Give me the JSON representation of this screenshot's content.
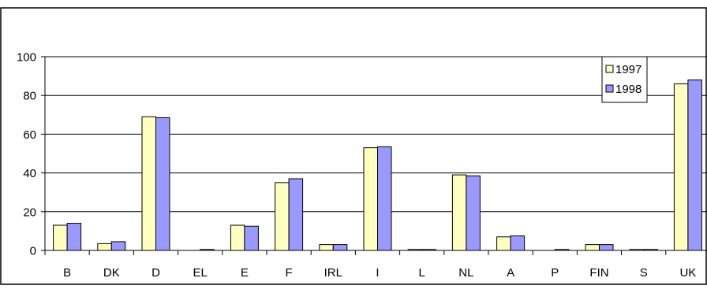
{
  "colors": {
    "series_1997": "#ffffc0",
    "series_1998": "#9999ff",
    "bar_stroke": "#000000",
    "grid": "#000000",
    "background": "#ffffff"
  },
  "chart_data": {
    "type": "bar",
    "categories": [
      "B",
      "DK",
      "D",
      "EL",
      "E",
      "F",
      "IRL",
      "I",
      "L",
      "NL",
      "A",
      "P",
      "FIN",
      "S",
      "UK"
    ],
    "series": [
      {
        "name": "1997",
        "values": [
          13,
          3.5,
          69,
          0,
          13,
          35,
          3,
          53,
          0.5,
          39,
          7,
          0,
          3,
          0.5,
          86
        ]
      },
      {
        "name": "1998",
        "values": [
          14,
          4.5,
          68.5,
          0.5,
          12.5,
          37,
          3,
          53.5,
          0.5,
          38.5,
          7.5,
          0.5,
          3,
          0.5,
          88
        ]
      }
    ],
    "ylim": [
      0,
      100
    ],
    "yticks": [
      "0",
      "20",
      "40",
      "60",
      "80",
      "100"
    ],
    "grid": true,
    "legend_position": "top-right",
    "title": "",
    "xlabel": "",
    "ylabel": ""
  }
}
